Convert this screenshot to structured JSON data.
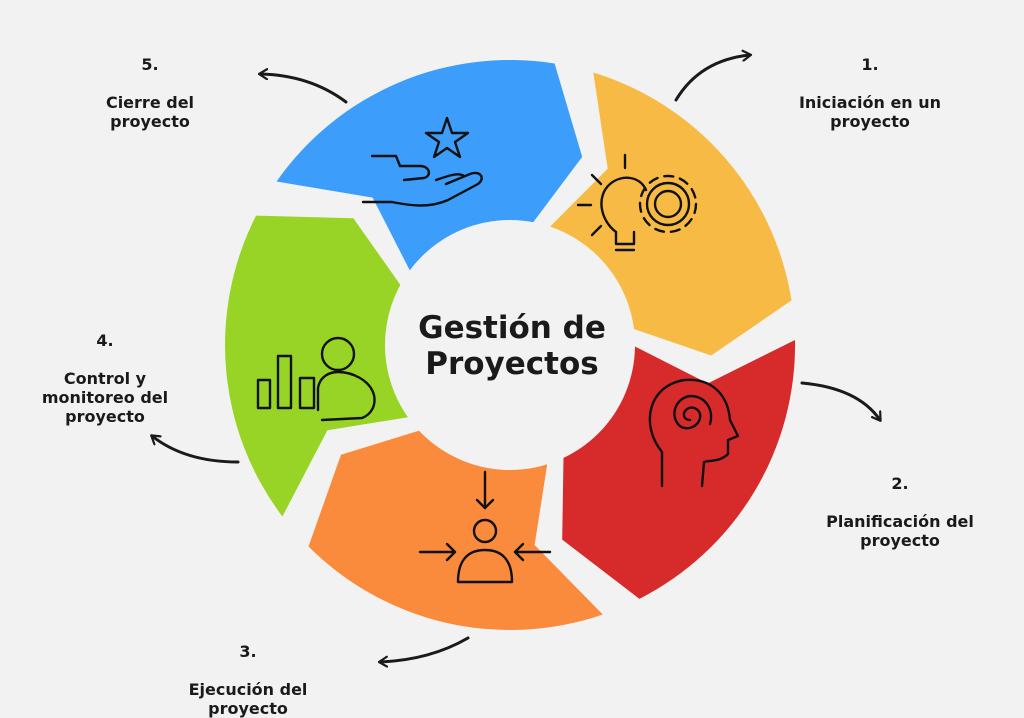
{
  "center_title": "Gestión de\nProyectos",
  "phases": [
    {
      "number": "1.",
      "label": "Iniciación en un\nproyecto",
      "color": "#3c9dfb",
      "icon": "lightbulb-gear-icon"
    },
    {
      "number": "2.",
      "label": "Planificación del\nproyecto",
      "color": "#f7bb45",
      "icon": "head-spiral-icon"
    },
    {
      "number": "3.",
      "label": "Ejecución del\nproyecto",
      "color": "#d72a2b",
      "icon": "person-arrows-icon"
    },
    {
      "number": "4.",
      "label": "Control y\nmonitoreo del\nproyecto",
      "color": "#fa8a3c",
      "icon": "bar-chart-person-icon"
    },
    {
      "number": "5.",
      "label": "Cierre del\nproyecto",
      "color": "#98d425",
      "icon": "hand-star-icon"
    }
  ]
}
